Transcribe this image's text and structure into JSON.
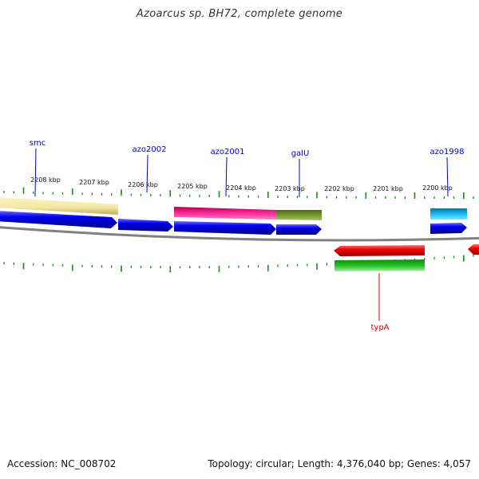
{
  "title": "Azoarcus sp. BH72, complete genome",
  "footer": {
    "accession": "Accession: NC_008702",
    "summary": "Topology: circular; Length: 4,376,040 bp; Genes: 4,057"
  },
  "colors": {
    "forward_cds": "#0000ee",
    "label_forward": "#0000cc",
    "label_reverse": "#dd0000",
    "tick": "#1a8a1a",
    "backbone": "#808080"
  },
  "scale": {
    "unit": "kbp",
    "labels": [
      "2208 kbp",
      "2207 kbp",
      "2206 kbp",
      "2205 kbp",
      "2204 kbp",
      "2203 kbp",
      "2202 kbp",
      "2201 kbp",
      "2200 kbp"
    ]
  },
  "genes": [
    {
      "label": "smc",
      "strand": "forward"
    },
    {
      "label": "azo2002",
      "strand": "forward"
    },
    {
      "label": "azo2001",
      "strand": "forward"
    },
    {
      "label": "galU",
      "strand": "forward"
    },
    {
      "label": "azo1998",
      "strand": "forward"
    },
    {
      "label": "typA",
      "strand": "reverse"
    }
  ]
}
